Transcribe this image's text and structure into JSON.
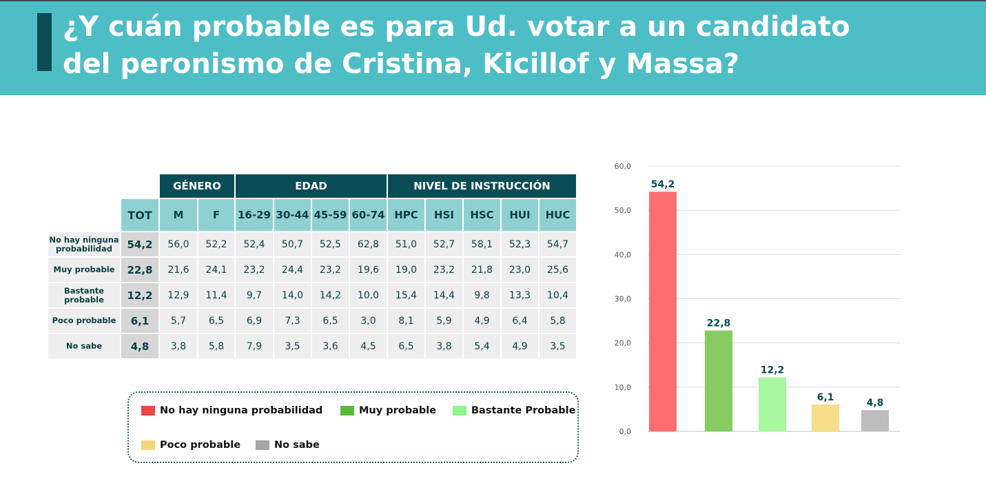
{
  "header": {
    "title_line1": "¿Y cuán probable es para Ud. votar a un candidato",
    "title_line2": "del peronismo de Cristina, Kicillof y Massa?"
  },
  "table": {
    "groups": {
      "genero": "GÉNERO",
      "edad": "EDAD",
      "nivel": "NIVEL DE INSTRUCCIÓN"
    },
    "columns": [
      "TOT",
      "M",
      "F",
      "16-29",
      "30-44",
      "45-59",
      "60-74",
      "HPC",
      "HSI",
      "HSC",
      "HUI",
      "HUC"
    ],
    "rows": [
      {
        "label_l1": "No hay ninguna",
        "label_l2": "probabilidad",
        "values": [
          "54,2",
          "56,0",
          "52,2",
          "52,4",
          "50,7",
          "52,5",
          "62,8",
          "51,0",
          "52,7",
          "58,1",
          "52,3",
          "54,7"
        ]
      },
      {
        "label_l1": "Muy probable",
        "label_l2": "",
        "values": [
          "22,8",
          "21,6",
          "24,1",
          "23,2",
          "24,4",
          "23,2",
          "19,6",
          "19,0",
          "23,2",
          "21,8",
          "23,0",
          "25,6"
        ]
      },
      {
        "label_l1": "Bastante",
        "label_l2": "probable",
        "values": [
          "12,2",
          "12,9",
          "11,4",
          "9,7",
          "14,0",
          "14,2",
          "10,0",
          "15,4",
          "14,4",
          "9,8",
          "13,3",
          "10,4"
        ]
      },
      {
        "label_l1": "Poco probable",
        "label_l2": "",
        "values": [
          "6,1",
          "5,7",
          "6,5",
          "6,9",
          "7,3",
          "6,5",
          "3,0",
          "8,1",
          "5,9",
          "4,9",
          "6,4",
          "5,8"
        ]
      },
      {
        "label_l1": "No sabe",
        "label_l2": "",
        "values": [
          "4,8",
          "3,8",
          "5,8",
          "7,9",
          "3,5",
          "3,6",
          "4,5",
          "6,5",
          "3,8",
          "5,4",
          "4,9",
          "3,5"
        ]
      }
    ]
  },
  "legend": [
    {
      "label": "No hay ninguna probabilidad",
      "color": "#f04646"
    },
    {
      "label": "Muy probable",
      "color": "#5ab93c"
    },
    {
      "label": "Bastante Probable",
      "color": "#8ff58f"
    },
    {
      "label": "Poco probable",
      "color": "#f7d67a"
    },
    {
      "label": "No sabe",
      "color": "#a6a6a6"
    }
  ],
  "chart_data": {
    "type": "bar",
    "title": "",
    "xlabel": "",
    "ylabel": "",
    "categories": [
      "No hay ninguna probabilidad",
      "Muy probable",
      "Bastante Probable",
      "Poco probable",
      "No sabe"
    ],
    "values": [
      54.2,
      22.8,
      12.2,
      6.1,
      4.8
    ],
    "value_labels": [
      "54,2",
      "22,8",
      "12,2",
      "6,1",
      "4,8"
    ],
    "colors": [
      "#ff6e6e",
      "#86cb5f",
      "#a6f79d",
      "#f8de8a",
      "#bdbdbd"
    ],
    "ylim": [
      0,
      60
    ],
    "yticks": [
      0,
      10,
      20,
      30,
      40,
      50,
      60
    ],
    "ytick_labels": [
      "0,0",
      "10,0",
      "20,0",
      "30,0",
      "40,0",
      "50,0",
      "60,0"
    ],
    "grid": true,
    "legend": "bottom-left"
  }
}
